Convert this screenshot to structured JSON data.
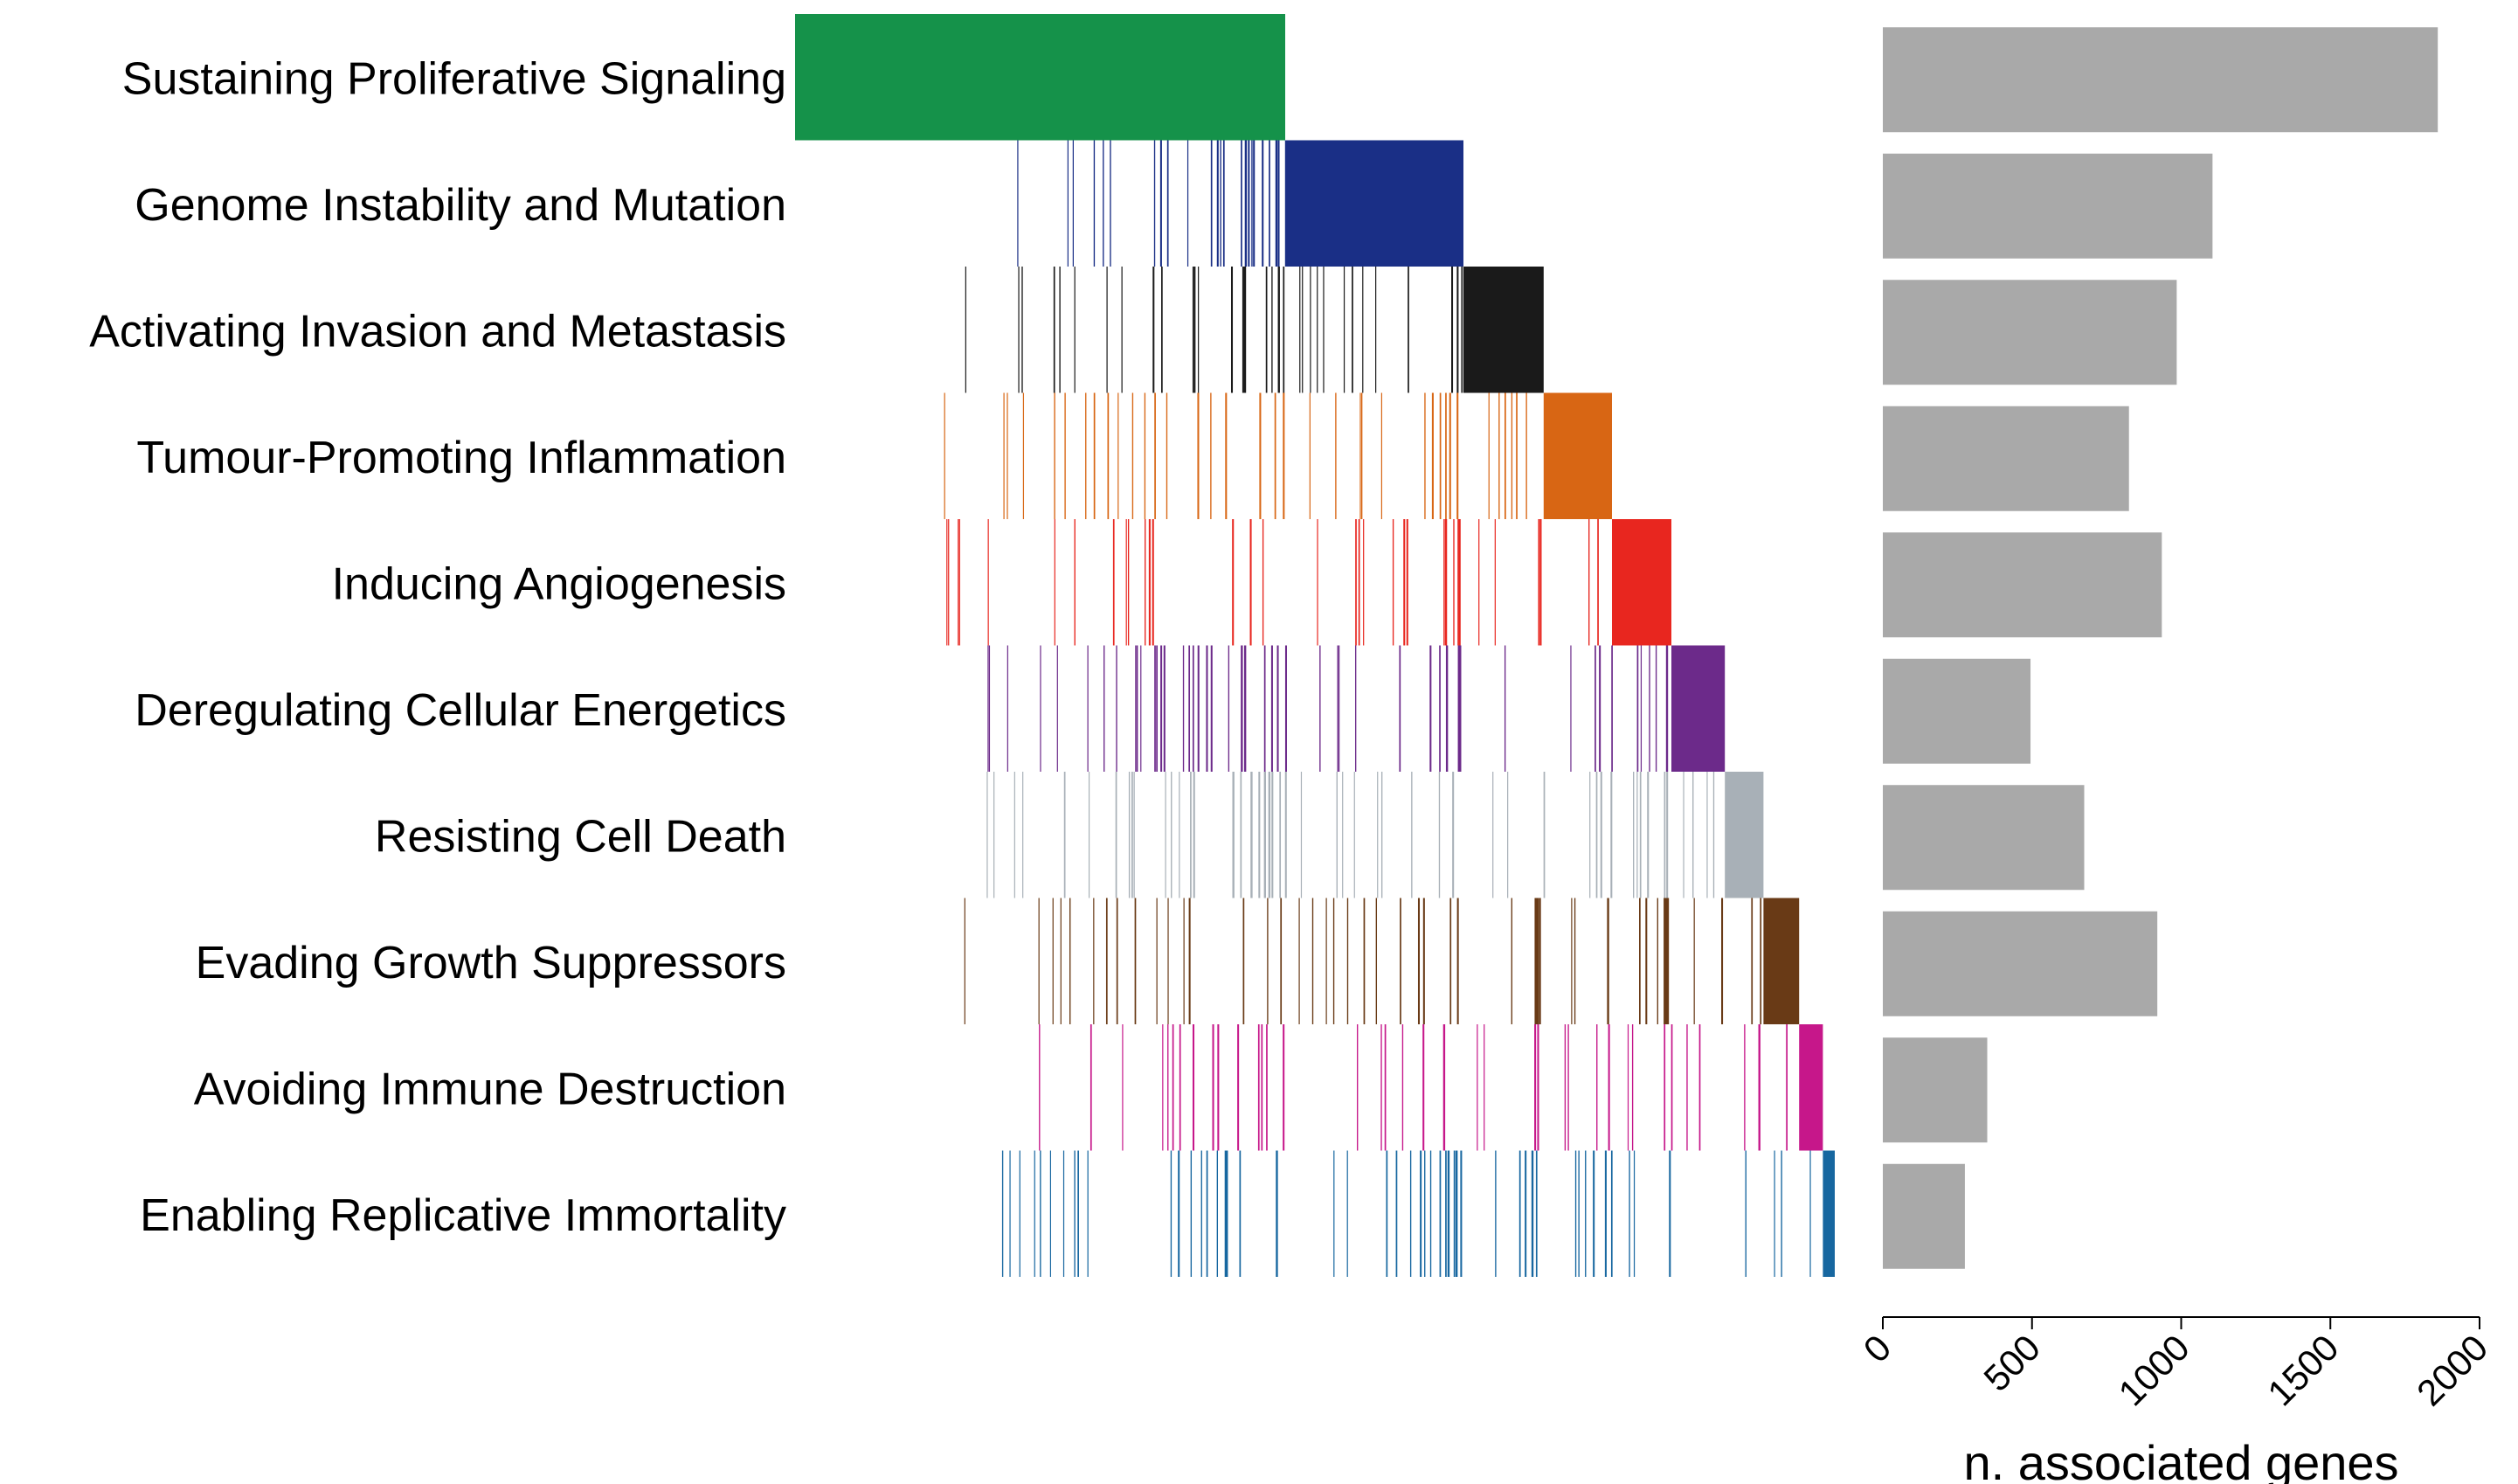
{
  "chart_data": [
    {
      "type": "heatmap",
      "title": "",
      "rows": [
        "Sustaining Proliferative Signaling",
        "Genome Instability and Mutation",
        "Activating Invasion and Metastasis",
        "Tumour-Promoting Inflammation",
        "Inducing Angiogenesis",
        "Deregulating Cellular Energetics",
        "Resisting Cell Death",
        "Evading Growth Suppressors",
        "Avoiding Immune Destruction",
        "Enabling Replicative Immortality"
      ],
      "colors": [
        "#15924a",
        "#1a2f86",
        "#1a1a1a",
        "#d86614",
        "#e8261f",
        "#6c2a8a",
        "#a8b0b7",
        "#693a16",
        "#c6178a",
        "#1767a0"
      ],
      "blocks": [
        {
          "start": 0,
          "end": 1650
        },
        {
          "start": 1650,
          "end": 2250
        },
        {
          "start": 2250,
          "end": 2520
        },
        {
          "start": 2520,
          "end": 2750
        },
        {
          "start": 2750,
          "end": 2950
        },
        {
          "start": 2950,
          "end": 3130
        },
        {
          "start": 3130,
          "end": 3260
        },
        {
          "start": 3260,
          "end": 3380
        },
        {
          "start": 3380,
          "end": 3460
        },
        {
          "start": 3460,
          "end": 3500
        }
      ],
      "total_columns": 3500,
      "legend": "none"
    },
    {
      "type": "bar",
      "orientation": "horizontal",
      "categories": [
        "Sustaining Proliferative Signaling",
        "Genome Instability and Mutation",
        "Activating Invasion and Metastasis",
        "Tumour-Promoting Inflammation",
        "Inducing Angiogenesis",
        "Deregulating Cellular Energetics",
        "Resisting Cell Death",
        "Evading Growth Suppressors",
        "Avoiding Immune Destruction",
        "Enabling Replicative Immortality"
      ],
      "values": [
        1860,
        1105,
        985,
        825,
        935,
        495,
        675,
        920,
        350,
        275
      ],
      "xlabel": "n. associated genes",
      "ylabel": "",
      "xlim": [
        0,
        2000
      ],
      "xticks": [
        "0",
        "500",
        "1000",
        "1500",
        "2000"
      ],
      "bar_color": "#a9a9a9",
      "grid": false
    }
  ]
}
